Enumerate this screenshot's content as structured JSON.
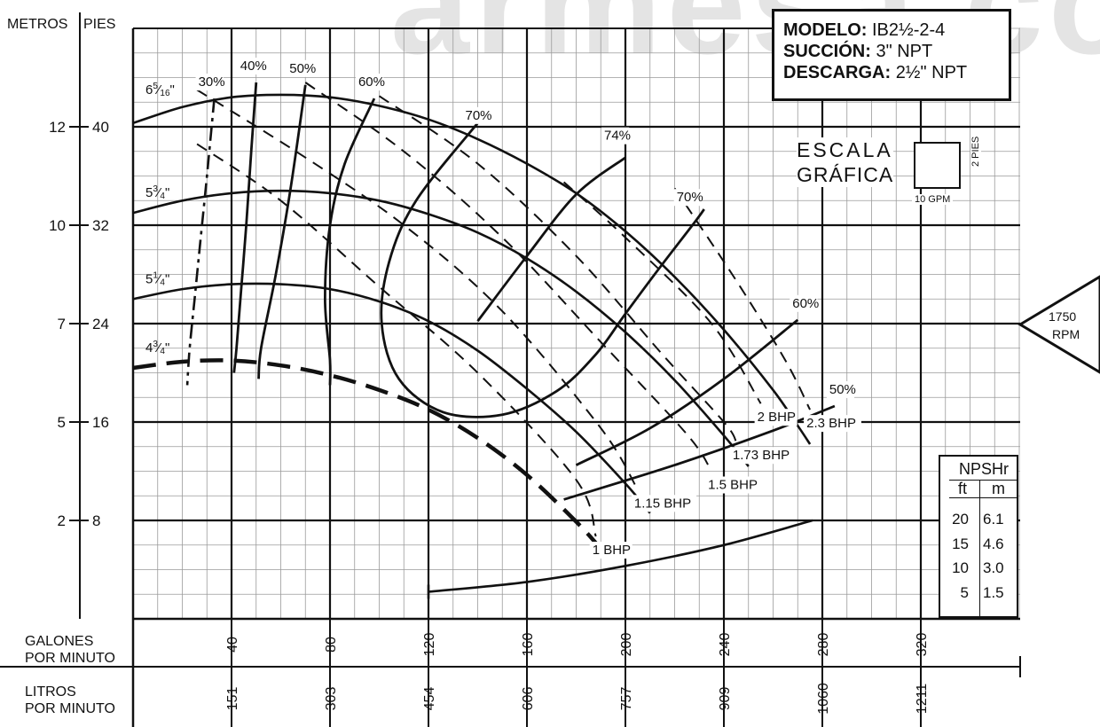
{
  "watermark": "armesa.com",
  "axes": {
    "metros_label": "METROS",
    "pies_label": "PIES",
    "gpm_label_line1": "GALONES",
    "gpm_label_line2": "POR MINUTO",
    "lpm_label_line1": "LITROS",
    "lpm_label_line2": "POR MINUTO"
  },
  "info_box": {
    "modelo_key": "MODELO:",
    "modelo_val": "IB2½-2-4",
    "succion_key": "SUCCIÓN:",
    "succion_val": "3\" NPT",
    "descarga_key": "DESCARGA:",
    "descarga_val": "2½\" NPT"
  },
  "scale": {
    "line1": "ESCALA",
    "line2": "GRÁFICA",
    "gpm": "10 GPM",
    "ft": "2 PIES"
  },
  "rpm": {
    "line1": "1750",
    "line2": "RPM"
  },
  "npsh": {
    "title": "NPSHr",
    "head_ft": "ft",
    "head_m": "m",
    "rows": [
      {
        "ft": "20",
        "m": "6.1"
      },
      {
        "ft": "15",
        "m": "4.6"
      },
      {
        "ft": "10",
        "m": "3.0"
      },
      {
        "ft": "5",
        "m": "1.5"
      }
    ]
  },
  "chart_data": {
    "type": "line",
    "title": "",
    "xlabel": "GALONES POR MINUTO",
    "ylabel": "PIES",
    "xlim": [
      0,
      360
    ],
    "ylim": [
      0,
      48
    ],
    "grid": true,
    "x_ticks": [
      40,
      80,
      120,
      160,
      200,
      240,
      280,
      320
    ],
    "x_tick_labels": [
      "40",
      "80",
      "120",
      "160",
      "200",
      "240",
      "280",
      "320"
    ],
    "lpm_tick_labels": [
      "151",
      "303",
      "454",
      "606",
      "757",
      "909",
      "1060",
      "1211"
    ],
    "y_ticks": [
      8,
      16,
      24,
      32,
      40
    ],
    "y_tick_labels": [
      "8",
      "16",
      "24",
      "32",
      "40"
    ],
    "metros_tick_labels": [
      "2",
      "5",
      "7",
      "10",
      "12"
    ],
    "impeller_curves": [
      {
        "name": "6 5/16\"",
        "label": "6",
        "sup": "5",
        "sub": "16",
        "x": [
          0,
          20,
          40,
          60,
          80,
          100,
          120,
          140,
          160,
          180,
          200,
          220,
          240,
          260,
          270,
          275
        ],
        "y": [
          40.3,
          41.6,
          42.4,
          42.6,
          42.4,
          41.7,
          40.6,
          39.0,
          37.0,
          34.6,
          31.5,
          27.8,
          23.5,
          18.6,
          15.7,
          14.2
        ]
      },
      {
        "name": "5 3/4\"",
        "label": "5",
        "sup": "3",
        "sub": "4",
        "x": [
          0,
          20,
          40,
          60,
          80,
          100,
          120,
          140,
          160,
          180,
          200,
          220,
          240,
          250
        ],
        "y": [
          33.0,
          34.0,
          34.6,
          34.8,
          34.6,
          34.0,
          32.9,
          31.4,
          29.3,
          26.6,
          23.3,
          19.4,
          14.9,
          12.4
        ]
      },
      {
        "name": "5 1/4\"",
        "label": "5",
        "sup": "1",
        "sub": "4",
        "x": [
          0,
          20,
          40,
          60,
          80,
          100,
          120,
          140,
          160,
          180,
          200,
          210
        ],
        "y": [
          26.0,
          26.8,
          27.2,
          27.2,
          26.8,
          25.8,
          24.2,
          21.8,
          18.7,
          15.2,
          11.0,
          8.6
        ]
      },
      {
        "name": "4 3/4\"",
        "label": "4",
        "sup": "3",
        "sub": "4",
        "x": [
          0,
          20,
          40,
          60,
          80,
          100,
          120,
          140,
          160,
          180,
          190
        ],
        "y": [
          20.4,
          20.9,
          21.0,
          20.6,
          19.8,
          18.6,
          17.0,
          14.7,
          11.7,
          7.9,
          5.7
        ]
      }
    ],
    "efficiency_curves": [
      {
        "label": "30%",
        "x": [
          33,
          30,
          27,
          25,
          23,
          22
        ],
        "y": [
          42.3,
          36.0,
          30.0,
          26.0,
          22.0,
          19.0
        ]
      },
      {
        "label": "40%",
        "x": [
          50,
          48,
          46,
          44,
          42,
          41
        ],
        "y": [
          43.6,
          38.0,
          32.0,
          27.0,
          22.0,
          20.0
        ]
      },
      {
        "label": "50%",
        "x": [
          70,
          64,
          58,
          52,
          51
        ],
        "y": [
          43.4,
          35.0,
          28.0,
          22.0,
          19.5
        ]
      },
      {
        "label": "60%",
        "x": [
          98,
          86,
          80,
          78,
          80,
          80
        ],
        "y": [
          42.3,
          37.0,
          32.0,
          26.0,
          21.0,
          19.0
        ]
      },
      {
        "label": "74%",
        "x": [
          140,
          160,
          180,
          200
        ],
        "y": [
          24.2,
          29.5,
          34.5,
          37.5
        ]
      },
      {
        "label": "70%",
        "x": [
          140,
          115,
          104,
          101,
          108,
          126,
          150,
          172,
          188,
          200,
          213,
          228,
          232
        ],
        "y": [
          40.3,
          34.0,
          29.0,
          24.0,
          19.5,
          16.8,
          16.6,
          18.5,
          21.5,
          24.8,
          28.3,
          32.2,
          33.3
        ]
      },
      {
        "label": "60%",
        "x": [
          180,
          210,
          240,
          270
        ],
        "y": [
          12.5,
          15.5,
          19.5,
          24.3
        ]
      },
      {
        "label": "50%",
        "x": [
          175,
          220,
          260,
          285
        ],
        "y": [
          9.7,
          12.5,
          15.3,
          17.3
        ]
      }
    ],
    "power_curves": [
      {
        "label": "1 BHP",
        "x": [
          26,
          60,
          100,
          140,
          180,
          188
        ],
        "y": [
          38.6,
          34.0,
          27.0,
          20.0,
          11.3,
          6.7
        ]
      },
      {
        "label": "1.15 BHP",
        "x": [
          26,
          70,
          110,
          150,
          190,
          205
        ],
        "y": [
          43.0,
          37.5,
          32.0,
          25.0,
          15.5,
          10.5
        ]
      },
      {
        "label": "1.5 BHP",
        "x": [
          70,
          110,
          150,
          190,
          225,
          235
        ],
        "y": [
          43.6,
          38.0,
          31.0,
          22.5,
          15.0,
          12.0
        ]
      },
      {
        "label": "1.73 BHP",
        "x": [
          100,
          140,
          180,
          215,
          240,
          245
        ],
        "y": [
          42.5,
          37.0,
          29.5,
          21.5,
          16.0,
          14.4
        ]
      },
      {
        "label": "2 BHP",
        "x": [
          175,
          200,
          235,
          255
        ],
        "y": [
          35.5,
          31.0,
          24.0,
          17.5
        ]
      },
      {
        "label": "2.3 BHP",
        "x": [
          220,
          245,
          265,
          275
        ],
        "y": [
          35.0,
          27.5,
          21.0,
          17.0
        ]
      }
    ],
    "npsh_curve": {
      "x": [
        120,
        160,
        200,
        240,
        276
      ],
      "y": [
        2.2,
        3.0,
        4.3,
        6.0,
        8.0
      ]
    }
  }
}
